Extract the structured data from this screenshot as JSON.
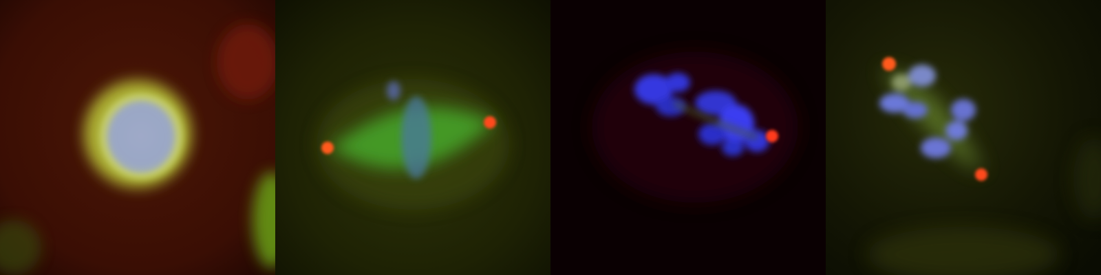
{
  "panels": [
    {
      "id": "panel-1",
      "description_name": "interphase-cell",
      "background": "#3a0c04"
    },
    {
      "id": "panel-2",
      "description_name": "metaphase-spindle-cell",
      "background": "#1d2004"
    },
    {
      "id": "panel-3",
      "description_name": "chromosomes-blue-cell",
      "background": "#0b0002"
    },
    {
      "id": "panel-4",
      "description_name": "anaphase-like-cell",
      "background": "#121404"
    }
  ],
  "channel_colors": {
    "dna": "#5a5cff",
    "tubulin": "#46b82a",
    "centrosome": "#ff4a1a",
    "cytoplasm": "#7a1a08"
  }
}
